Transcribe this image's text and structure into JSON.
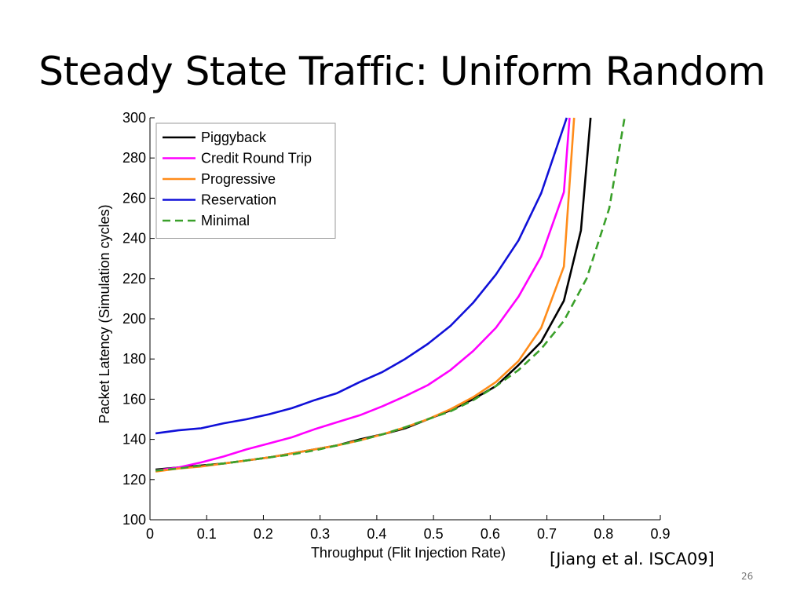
{
  "slide": {
    "title": "Steady State Traffic: Uniform Random",
    "citation": "[Jiang et al. ISCA09]",
    "page_number": "26"
  },
  "chart_data": {
    "type": "line",
    "title": "",
    "xlabel": "Throughput (Flit Injection Rate)",
    "ylabel": "Packet Latency  (Simulation cycles)",
    "xlim": [
      0,
      0.9
    ],
    "ylim": [
      100,
      300
    ],
    "xticks": [
      0,
      0.1,
      0.2,
      0.3,
      0.4,
      0.5,
      0.6,
      0.7,
      0.8,
      0.9
    ],
    "xtick_labels": [
      "0",
      "0.1",
      "0.2",
      "0.3",
      "0.4",
      "0.5",
      "0.6",
      "0.7",
      "0.8",
      "0.9"
    ],
    "yticks": [
      100,
      120,
      140,
      160,
      180,
      200,
      220,
      240,
      260,
      280,
      300
    ],
    "ytick_labels": [
      "100",
      "120",
      "140",
      "160",
      "180",
      "200",
      "220",
      "240",
      "260",
      "280",
      "300"
    ],
    "grid": false,
    "legend_position": "top-left",
    "series": [
      {
        "name": "Piggyback",
        "color": "#000000",
        "dashed": false,
        "x": [
          0.01,
          0.05,
          0.09,
          0.13,
          0.17,
          0.21,
          0.25,
          0.29,
          0.33,
          0.37,
          0.41,
          0.45,
          0.49,
          0.53,
          0.57,
          0.61,
          0.65,
          0.69,
          0.73,
          0.76,
          0.777
        ],
        "y": [
          125,
          126,
          127,
          128,
          129.5,
          131,
          133,
          135,
          137,
          140,
          142.5,
          145.5,
          150,
          154.5,
          160,
          166.5,
          177,
          188.5,
          209,
          244,
          300
        ]
      },
      {
        "name": "Credit Round Trip",
        "color": "#ff00ff",
        "dashed": false,
        "x": [
          0.01,
          0.05,
          0.09,
          0.13,
          0.17,
          0.21,
          0.25,
          0.29,
          0.33,
          0.37,
          0.41,
          0.45,
          0.49,
          0.53,
          0.57,
          0.61,
          0.65,
          0.69,
          0.73,
          0.74
        ],
        "y": [
          124.5,
          126,
          128.5,
          131.5,
          135,
          138,
          141,
          145,
          148.5,
          152,
          156.5,
          161.5,
          167,
          174.5,
          184,
          195.5,
          211,
          231,
          263,
          300
        ]
      },
      {
        "name": "Progressive",
        "color": "#ff8c1a",
        "dashed": false,
        "x": [
          0.01,
          0.05,
          0.09,
          0.13,
          0.17,
          0.21,
          0.25,
          0.29,
          0.33,
          0.37,
          0.41,
          0.45,
          0.49,
          0.53,
          0.57,
          0.61,
          0.65,
          0.69,
          0.73,
          0.748
        ],
        "y": [
          124,
          125.5,
          126.5,
          128,
          129.5,
          131,
          133,
          135,
          137,
          139.5,
          142.5,
          146,
          150,
          155,
          161,
          168.5,
          179,
          195.5,
          226,
          300
        ]
      },
      {
        "name": "Reservation",
        "color": "#1010d8",
        "dashed": false,
        "x": [
          0.01,
          0.05,
          0.09,
          0.13,
          0.17,
          0.21,
          0.25,
          0.29,
          0.33,
          0.37,
          0.41,
          0.45,
          0.49,
          0.53,
          0.57,
          0.61,
          0.65,
          0.69,
          0.735
        ],
        "y": [
          143,
          144.5,
          145.5,
          148,
          150,
          152.5,
          155.5,
          159.5,
          163,
          168.5,
          173.5,
          180,
          187.5,
          196.5,
          208,
          222,
          239,
          262.5,
          300
        ]
      },
      {
        "name": "Minimal",
        "color": "#3aa02a",
        "dashed": true,
        "x": [
          0.01,
          0.05,
          0.09,
          0.13,
          0.17,
          0.21,
          0.25,
          0.29,
          0.33,
          0.37,
          0.41,
          0.45,
          0.49,
          0.53,
          0.57,
          0.61,
          0.65,
          0.69,
          0.73,
          0.77,
          0.81,
          0.837
        ],
        "y": [
          124.5,
          125.5,
          127,
          128,
          129.5,
          131,
          132.5,
          134.5,
          137,
          139.5,
          142.5,
          146,
          150,
          154,
          159.5,
          166.5,
          174.5,
          185,
          199,
          220,
          255,
          300
        ]
      }
    ]
  }
}
